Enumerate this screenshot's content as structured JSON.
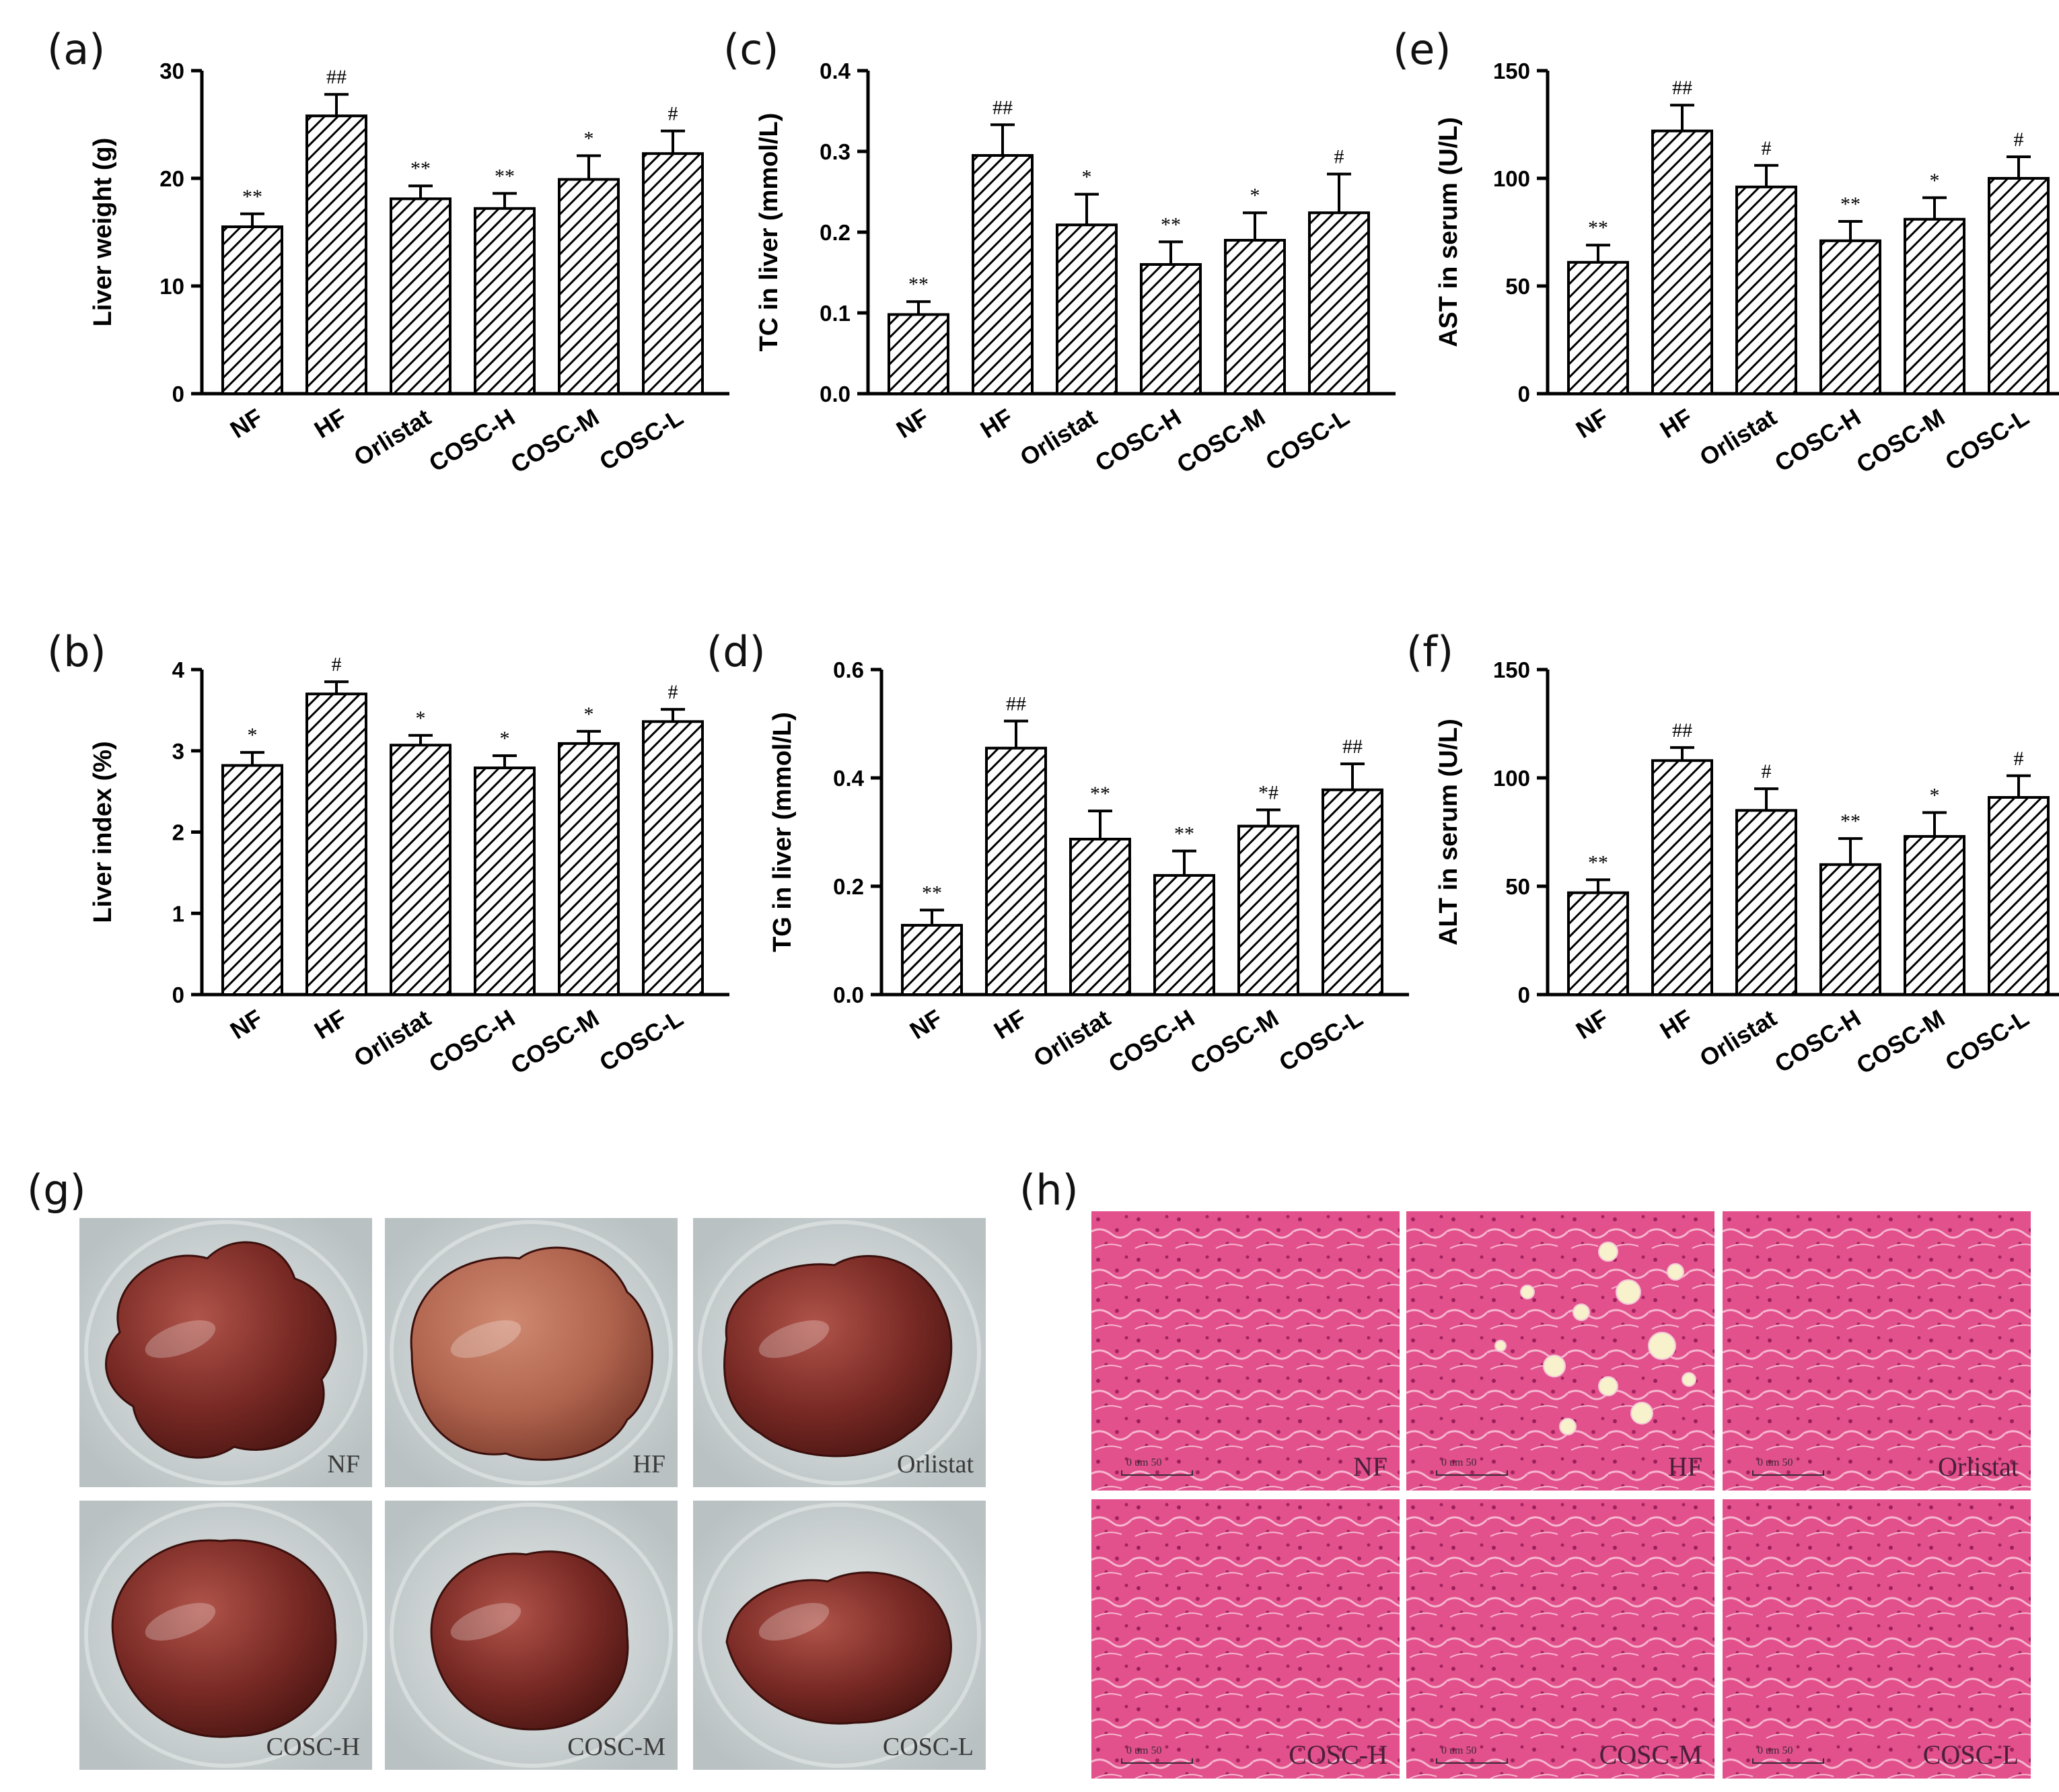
{
  "chart_data": [
    {
      "panel": "(a)",
      "type": "bar",
      "ylabel": "Liver weight (g)",
      "categories": [
        "NF",
        "HF",
        "Orlistat",
        "COSC-H",
        "COSC-M",
        "COSC-L"
      ],
      "values": [
        15.5,
        25.8,
        18.1,
        17.2,
        19.9,
        22.3
      ],
      "errors": [
        1.2,
        2.0,
        1.2,
        1.4,
        2.2,
        2.1
      ],
      "marks": [
        "**",
        "##",
        "**",
        "**",
        "*",
        "#"
      ],
      "ylim": [
        0,
        30
      ],
      "yticks": [
        "0",
        "10",
        "20",
        "30"
      ]
    },
    {
      "panel": "(b)",
      "type": "bar",
      "ylabel": "Liver index (%)",
      "categories": [
        "NF",
        "HF",
        "Orlistat",
        "COSC-H",
        "COSC-M",
        "COSC-L"
      ],
      "values": [
        2.82,
        3.7,
        3.07,
        2.79,
        3.09,
        3.36
      ],
      "errors": [
        0.16,
        0.15,
        0.12,
        0.15,
        0.15,
        0.15
      ],
      "marks": [
        "*",
        "#",
        "*",
        "*",
        "*",
        "#"
      ],
      "ylim": [
        0,
        4
      ],
      "yticks": [
        "0",
        "1",
        "2",
        "3",
        "4"
      ]
    },
    {
      "panel": "(c)",
      "type": "bar",
      "ylabel": "TC in liver  (mmol/L)",
      "categories": [
        "NF",
        "HF",
        "Orlistat",
        "COSC-H",
        "COSC-M",
        "COSC-L"
      ],
      "values": [
        0.098,
        0.295,
        0.209,
        0.16,
        0.19,
        0.224
      ],
      "errors": [
        0.016,
        0.038,
        0.038,
        0.028,
        0.034,
        0.048
      ],
      "marks": [
        "**",
        "##",
        "*",
        "**",
        "*",
        "#"
      ],
      "ylim": [
        0,
        0.4
      ],
      "yticks": [
        "0.0",
        "0.1",
        "0.2",
        "0.3",
        "0.4"
      ]
    },
    {
      "panel": "(d)",
      "type": "bar",
      "ylabel": "TG in liver  (mmol/L)",
      "categories": [
        "NF",
        "HF",
        "Orlistat",
        "COSC-H",
        "COSC-M",
        "COSC-L"
      ],
      "values": [
        0.128,
        0.455,
        0.287,
        0.22,
        0.311,
        0.378
      ],
      "errors": [
        0.028,
        0.05,
        0.052,
        0.045,
        0.03,
        0.048
      ],
      "marks": [
        "**",
        "##",
        "**",
        "**",
        "*#",
        "##"
      ],
      "ylim": [
        0,
        0.6
      ],
      "yticks": [
        "0.0",
        "0.2",
        "0.4",
        "0.6"
      ]
    },
    {
      "panel": "(e)",
      "type": "bar",
      "ylabel": "AST in serum (U/L)",
      "categories": [
        "NF",
        "HF",
        "Orlistat",
        "COSC-H",
        "COSC-M",
        "COSC-L"
      ],
      "values": [
        61,
        122,
        96,
        71,
        81,
        100
      ],
      "errors": [
        8,
        12,
        10,
        9,
        10,
        10
      ],
      "marks": [
        "**",
        "##",
        "#",
        "**",
        "*",
        "#"
      ],
      "ylim": [
        0,
        150
      ],
      "yticks": [
        "0",
        "50",
        "100",
        "150"
      ]
    },
    {
      "panel": "(f)",
      "type": "bar",
      "ylabel": "ALT in serum (U/L)",
      "categories": [
        "NF",
        "HF",
        "Orlistat",
        "COSC-H",
        "COSC-M",
        "COSC-L"
      ],
      "values": [
        47,
        108,
        85,
        60,
        73,
        91
      ],
      "errors": [
        6,
        6,
        10,
        12,
        11,
        10
      ],
      "marks": [
        "**",
        "##",
        "#",
        "**",
        "*",
        "#"
      ],
      "ylim": [
        0,
        150
      ],
      "yticks": [
        "0",
        "50",
        "100",
        "150"
      ]
    }
  ],
  "photos": {
    "letter": "(g)",
    "labels": [
      "NF",
      "HF",
      "Orlistat",
      "COSC-H",
      "COSC-M",
      "COSC-L"
    ]
  },
  "histology": {
    "letter": "(h)",
    "labels": [
      "NF",
      "HF",
      "Orlistat",
      "COSC-H",
      "COSC-M",
      "COSC-L"
    ],
    "scale_text": "0   um   50"
  },
  "colors": {
    "bar_fill": "#ffffff",
    "hatch": "#000000",
    "tissue": "#e04f8a",
    "tissue_light": "#f3a4c4"
  }
}
